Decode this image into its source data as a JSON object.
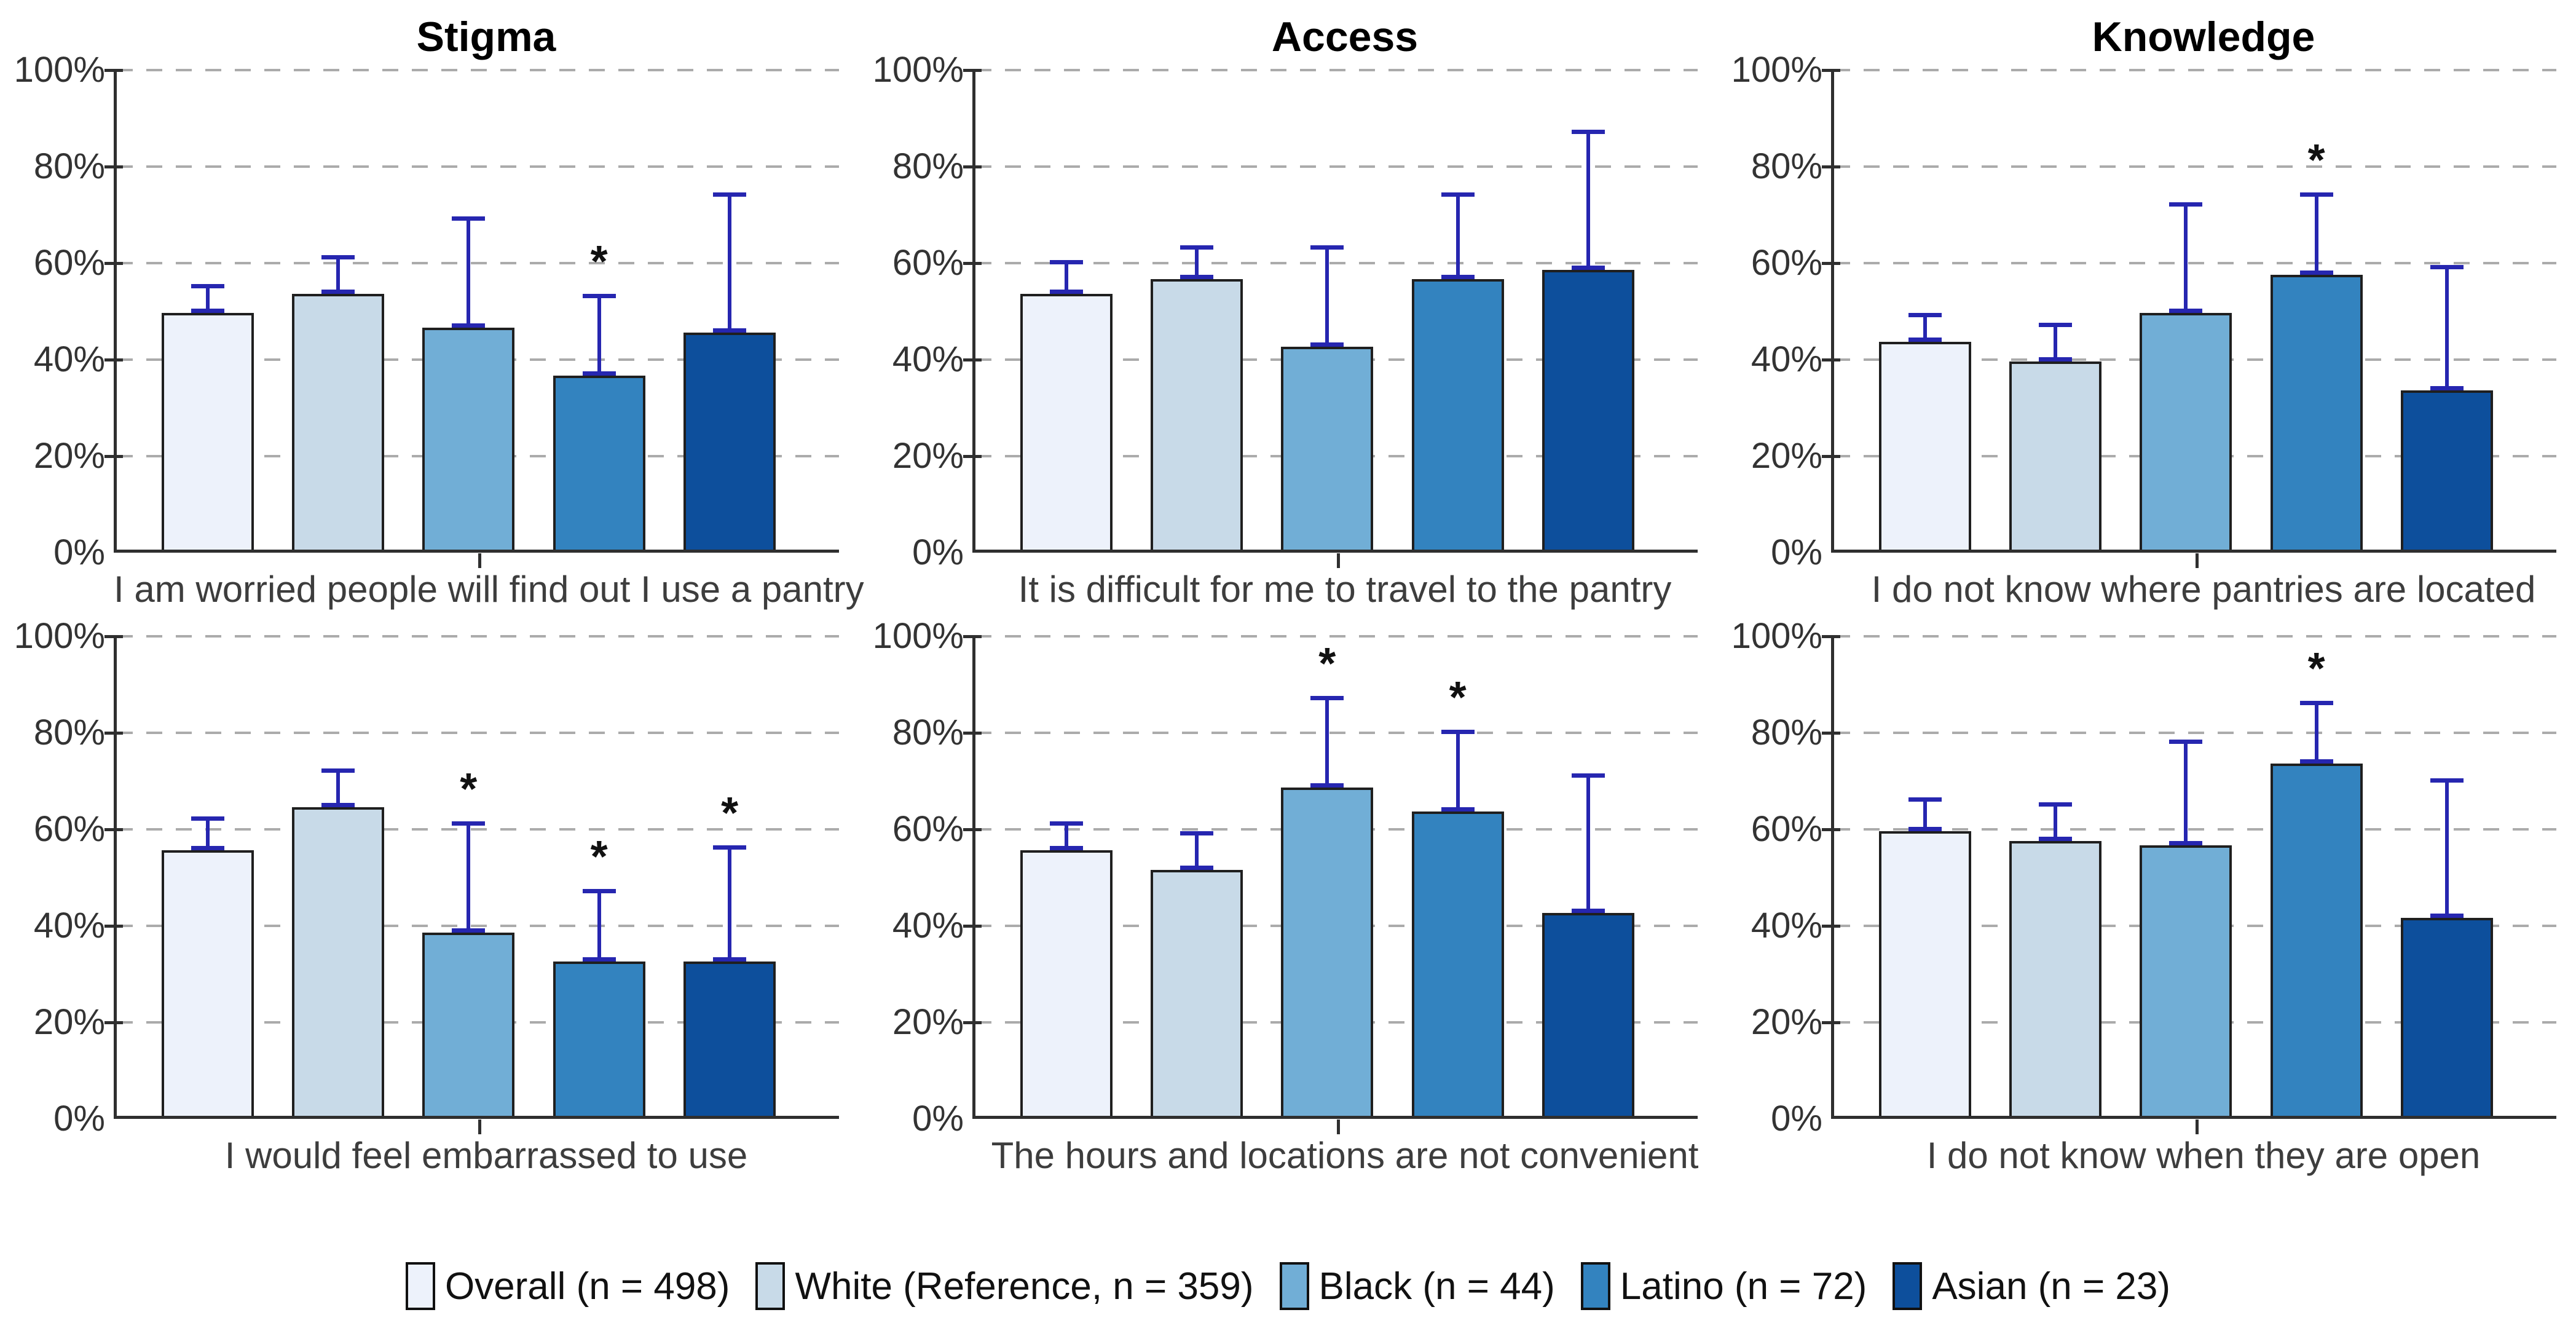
{
  "chart_data": {
    "type": "bar",
    "layout": "small-multiples 2 rows x 3 columns, grouped bars with upper 95% CI error bars",
    "column_titles": [
      "Stigma",
      "Access",
      "Knowledge"
    ],
    "y_axis": {
      "range": [
        0,
        100
      ],
      "ticks": [
        0,
        20,
        40,
        60,
        80,
        100
      ],
      "tick_labels": [
        "0%",
        "20%",
        "40%",
        "60%",
        "80%",
        "100%"
      ],
      "grid": "dashed horizontal gridlines"
    },
    "series": [
      {
        "name": "Overall",
        "legend_label": "Overall (n = 498)",
        "n": 498,
        "color": "#EDF2FB"
      },
      {
        "name": "White",
        "legend_label": "White (Reference, n = 359)",
        "n": 359,
        "color": "#C8DAE8"
      },
      {
        "name": "Black",
        "legend_label": "Black (n = 44)",
        "n": 44,
        "color": "#71AED6"
      },
      {
        "name": "Latino",
        "legend_label": "Latino (n = 72)",
        "n": 72,
        "color": "#3383BF"
      },
      {
        "name": "Asian",
        "legend_label": "Asian (n = 23)",
        "n": 23,
        "color": "#0D4F9C"
      }
    ],
    "panels": [
      {
        "row": 1,
        "column": "Stigma",
        "title": "Stigma",
        "question": "I am worried people will find out I use a pantry",
        "values": [
          49,
          53,
          46,
          36,
          45
        ],
        "ci_upper": [
          55,
          61,
          69,
          53,
          74
        ],
        "significant": [
          false,
          false,
          false,
          true,
          false
        ]
      },
      {
        "row": 1,
        "column": "Access",
        "title": "Access",
        "question": "It is difficult for me to travel to the pantry",
        "values": [
          53,
          56,
          42,
          56,
          58
        ],
        "ci_upper": [
          60,
          63,
          63,
          74,
          87
        ],
        "significant": [
          false,
          false,
          false,
          false,
          false
        ]
      },
      {
        "row": 1,
        "column": "Knowledge",
        "title": "Knowledge",
        "question": "I do not know where pantries are located",
        "values": [
          43,
          39,
          49,
          57,
          33
        ],
        "ci_upper": [
          49,
          47,
          72,
          74,
          59
        ],
        "significant": [
          false,
          false,
          false,
          true,
          false
        ]
      },
      {
        "row": 2,
        "column": "Stigma",
        "title": "",
        "question": "I would feel embarrassed to use",
        "values": [
          55,
          64,
          38,
          32,
          32
        ],
        "ci_upper": [
          62,
          72,
          61,
          47,
          56
        ],
        "significant": [
          false,
          false,
          true,
          true,
          true
        ]
      },
      {
        "row": 2,
        "column": "Access",
        "title": "",
        "question": "The hours and locations are not convenient",
        "values": [
          55,
          51,
          68,
          63,
          42
        ],
        "ci_upper": [
          61,
          59,
          87,
          80,
          71
        ],
        "significant": [
          false,
          false,
          true,
          true,
          false
        ]
      },
      {
        "row": 2,
        "column": "Knowledge",
        "title": "",
        "question": "I do not know when they are open",
        "values": [
          59,
          57,
          56,
          73,
          41
        ],
        "ci_upper": [
          66,
          65,
          78,
          86,
          70
        ],
        "significant": [
          false,
          false,
          false,
          true,
          false
        ]
      }
    ],
    "significance_marker": "*",
    "colors": {
      "error_bar": "#2626B0",
      "gridline": "#ABABAB",
      "axis": "#2F2F2F",
      "bar_outline": "#1F1F1F",
      "tick_text": "#333333",
      "question_text": "#3D3D3D",
      "title_text": "#000000"
    }
  },
  "legend": {
    "items": [
      {
        "label": "Overall (n = 498)",
        "color": "#EDF2FB"
      },
      {
        "label": "White (Reference, n = 359)",
        "color": "#C8DAE8"
      },
      {
        "label": "Black (n = 44)",
        "color": "#71AED6"
      },
      {
        "label": "Latino (n = 72)",
        "color": "#3383BF"
      },
      {
        "label": "Asian (n = 23)",
        "color": "#0D4F9C"
      }
    ]
  }
}
